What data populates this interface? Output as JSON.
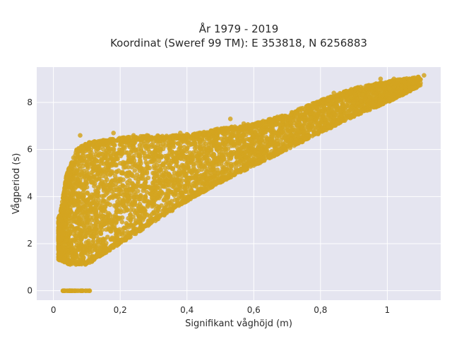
{
  "chart_data": {
    "type": "scatter",
    "title": "År 1979 - 2019",
    "subtitle": "Koordinat (Sweref 99 TM): E 353818, N 6256883",
    "xlabel": "Signifikant våghöjd (m)",
    "ylabel": "Vågperiod (s)",
    "xlim": [
      -0.05,
      1.16
    ],
    "ylim": [
      -0.4,
      9.5
    ],
    "x_ticks": [
      0,
      0.2,
      0.4,
      0.6,
      0.8,
      1
    ],
    "x_tick_labels": [
      "0",
      "0,2",
      "0,4",
      "0,6",
      "0,8",
      "1"
    ],
    "y_ticks": [
      0,
      2,
      4,
      6,
      8
    ],
    "y_tick_labels": [
      "0",
      "2",
      "4",
      "6",
      "8"
    ],
    "grid": true,
    "marker_color": "#D4A520",
    "background_color": "#E5E5F0",
    "point_cloud": {
      "description_values": "dense cloud: lower bound rises from T≈1.1 s at Hs≈0.05 m to T≈8.7 s at Hs≈1.1 m; upper bound ≈6.6 s for Hs 0.05–0.45 m, rising to ≈9.1 s at Hs≈1.1 m; separate cluster at T=0 for Hs 0.02–0.11 m",
      "lower_envelope": [
        [
          0.02,
          1.3
        ],
        [
          0.05,
          1.1
        ],
        [
          0.1,
          1.1
        ],
        [
          0.2,
          2.0
        ],
        [
          0.3,
          2.9
        ],
        [
          0.4,
          3.8
        ],
        [
          0.5,
          4.6
        ],
        [
          0.6,
          5.3
        ],
        [
          0.7,
          6.0
        ],
        [
          0.8,
          6.7
        ],
        [
          0.9,
          7.4
        ],
        [
          1.0,
          8.0
        ],
        [
          1.1,
          8.7
        ]
      ],
      "upper_envelope": [
        [
          0.02,
          3.2
        ],
        [
          0.04,
          5.0
        ],
        [
          0.07,
          6.0
        ],
        [
          0.1,
          6.3
        ],
        [
          0.2,
          6.5
        ],
        [
          0.3,
          6.6
        ],
        [
          0.4,
          6.6
        ],
        [
          0.5,
          6.9
        ],
        [
          0.6,
          7.1
        ],
        [
          0.7,
          7.5
        ],
        [
          0.8,
          8.1
        ],
        [
          0.9,
          8.6
        ],
        [
          1.0,
          8.9
        ],
        [
          1.1,
          9.1
        ]
      ],
      "zero_period_range": [
        0.02,
        0.11
      ]
    },
    "outliers": [
      {
        "x": 0.08,
        "y": 6.6
      },
      {
        "x": 0.18,
        "y": 6.7
      },
      {
        "x": 0.24,
        "y": 6.6
      },
      {
        "x": 0.28,
        "y": 6.6
      },
      {
        "x": 0.32,
        "y": 6.5
      },
      {
        "x": 0.38,
        "y": 6.7
      },
      {
        "x": 0.4,
        "y": 6.65
      },
      {
        "x": 0.53,
        "y": 7.3
      },
      {
        "x": 0.57,
        "y": 7.1
      },
      {
        "x": 0.84,
        "y": 8.4
      },
      {
        "x": 0.98,
        "y": 9.0
      },
      {
        "x": 1.02,
        "y": 9.0
      },
      {
        "x": 1.11,
        "y": 9.15
      }
    ]
  }
}
